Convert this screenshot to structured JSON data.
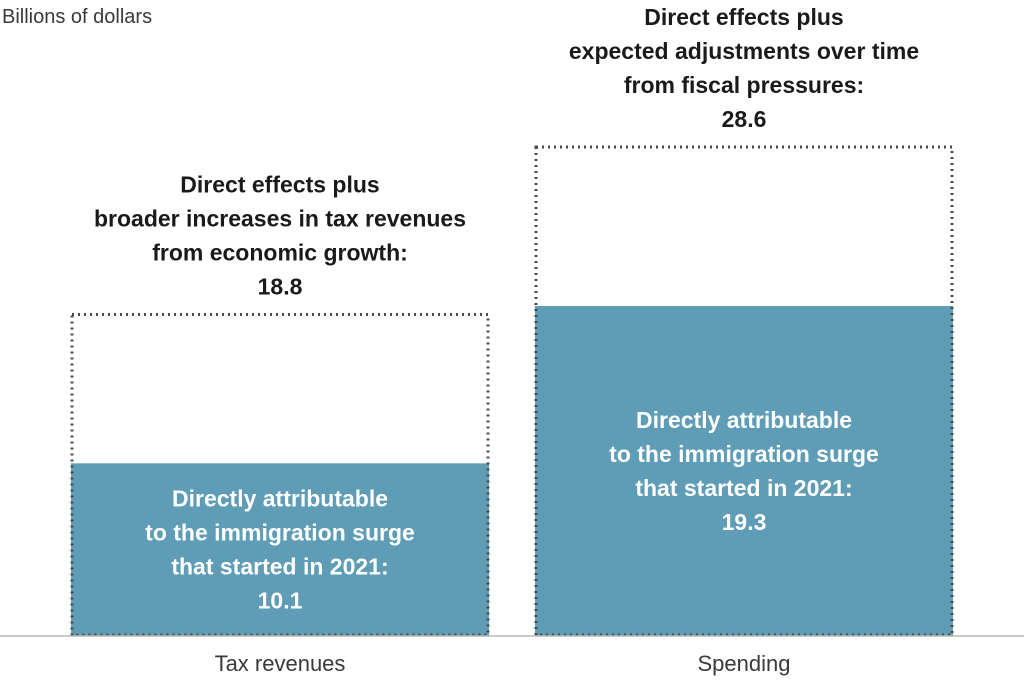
{
  "chart_data": {
    "type": "bar",
    "unit_label": "Billions of dollars",
    "categories": [
      "Tax revenues",
      "Spending"
    ],
    "series": [
      {
        "values": [
          10.1,
          19.3
        ]
      },
      {
        "values": [
          18.8,
          28.6
        ]
      }
    ],
    "direct_labels": [
      [
        "Directly attributable",
        "to the immigration surge",
        "that started in 2021:",
        "10.1"
      ],
      [
        "Directly attributable",
        "to the immigration surge",
        "that started in 2021:",
        "19.3"
      ]
    ],
    "total_labels": [
      [
        "Direct effects plus",
        "broader increases in tax revenues",
        "from economic growth:",
        "18.8"
      ],
      [
        "Direct effects plus",
        "expected adjustments over time",
        "from fiscal pressures:",
        "28.6"
      ]
    ],
    "ylim": [
      0,
      28.6
    ],
    "grid": false,
    "colors": {
      "direct": "#5e9db5",
      "total_outline": "#4a4a4a",
      "baseline": "#b8b8b8"
    }
  }
}
